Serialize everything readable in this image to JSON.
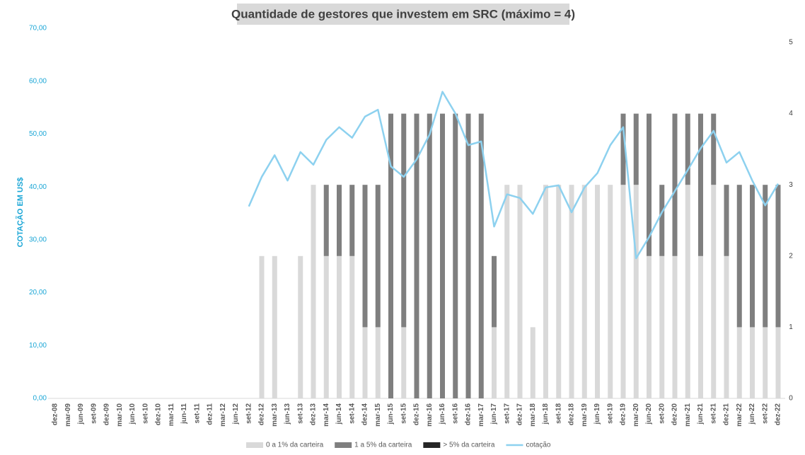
{
  "chart_data": {
    "type": "bar_line",
    "title": "Quantidade de gestores que investem em SRC (máximo = 4)",
    "ylabel": "COTAÇÃO EM US$",
    "categories": [
      "dez-08",
      "mar-09",
      "jun-09",
      "set-09",
      "dez-09",
      "mar-10",
      "jun-10",
      "set-10",
      "dez-10",
      "mar-11",
      "jun-11",
      "set-11",
      "dez-11",
      "mar-12",
      "jun-12",
      "set-12",
      "dez-12",
      "mar-13",
      "jun-13",
      "set-13",
      "dez-13",
      "mar-14",
      "jun-14",
      "set-14",
      "dez-14",
      "mar-15",
      "jun-15",
      "set-15",
      "dez-15",
      "mar-16",
      "jun-16",
      "set-16",
      "dez-16",
      "mar-17",
      "jun-17",
      "set-17",
      "dez-17",
      "mar-18",
      "jun-18",
      "set-18",
      "dez-18",
      "mar-19",
      "jun-19",
      "set-19",
      "dez-19",
      "mar-20",
      "jun-20",
      "set-20",
      "dez-20",
      "mar-21",
      "jun-21",
      "set-21",
      "dez-21",
      "mar-22",
      "jun-22",
      "set-22",
      "dez-22"
    ],
    "series": [
      {
        "name": "0 a 1% da carteira",
        "color": "#d9d9d9",
        "kind": "bar",
        "axis": "y2",
        "values": [
          0,
          0,
          0,
          0,
          0,
          0,
          0,
          0,
          0,
          0,
          0,
          0,
          0,
          0,
          0,
          0,
          2,
          2,
          0,
          2,
          3,
          2,
          2,
          2,
          1,
          1,
          0,
          1,
          0,
          0,
          0,
          0,
          0,
          0,
          1,
          3,
          3,
          1,
          3,
          3,
          3,
          3,
          3,
          3,
          3,
          3,
          2,
          2,
          2,
          3,
          2,
          3,
          2,
          1,
          1,
          1,
          1
        ]
      },
      {
        "name": "1 a 5% da carteira",
        "color": "#7f7f7f",
        "kind": "bar",
        "axis": "y2",
        "values": [
          0,
          0,
          0,
          0,
          0,
          0,
          0,
          0,
          0,
          0,
          0,
          0,
          0,
          0,
          0,
          0,
          0,
          0,
          0,
          0,
          0,
          1,
          1,
          1,
          2,
          2,
          4,
          3,
          4,
          4,
          4,
          4,
          4,
          4,
          1,
          0,
          0,
          0,
          0,
          0,
          0,
          0,
          0,
          0,
          1,
          1,
          2,
          1,
          2,
          1,
          2,
          1,
          1,
          2,
          2,
          2,
          2
        ]
      },
      {
        "name": "> 5% da carteira",
        "color": "#262626",
        "kind": "bar",
        "axis": "y2",
        "values": [
          0,
          0,
          0,
          0,
          0,
          0,
          0,
          0,
          0,
          0,
          0,
          0,
          0,
          0,
          0,
          0,
          0,
          0,
          0,
          0,
          0,
          0,
          0,
          0,
          0,
          0,
          0,
          0,
          0,
          0,
          0,
          0,
          0,
          0,
          0,
          0,
          0,
          0,
          0,
          0,
          0,
          0,
          0,
          0,
          0,
          0,
          0,
          0,
          0,
          0,
          0,
          0,
          0,
          0,
          0,
          0,
          0
        ]
      },
      {
        "name": "cotação",
        "color": "#8dd1ef",
        "kind": "line",
        "values": [
          null,
          null,
          null,
          null,
          null,
          null,
          null,
          null,
          null,
          null,
          null,
          null,
          null,
          null,
          null,
          36.3,
          41.9,
          46,
          41.2,
          46.6,
          44.2,
          48.9,
          51.3,
          49.3,
          53.3,
          54.6,
          43.9,
          41.9,
          45.2,
          49.9,
          58.0,
          53.9,
          47.9,
          48.6,
          32.5,
          38.6,
          37.9,
          34.9,
          39.9,
          40.3,
          35.2,
          39.9,
          42.6,
          47.9,
          51.3,
          26.5,
          30.5,
          35.2,
          39.2,
          43.2,
          47.3,
          50.6,
          44.6,
          46.6,
          41.2,
          36.5,
          40.6
        ]
      }
    ],
    "ylim": [
      0,
      70
    ],
    "yticks": [
      {
        "value": 0,
        "label": "0,00"
      },
      {
        "value": 10,
        "label": "10,00"
      },
      {
        "value": 20,
        "label": "20,00"
      },
      {
        "value": 30,
        "label": "30,00"
      },
      {
        "value": 40,
        "label": "40,00"
      },
      {
        "value": 50,
        "label": "50,00"
      },
      {
        "value": 60,
        "label": "60,00"
      },
      {
        "value": 70,
        "label": "70,00"
      }
    ],
    "y2lim": [
      0,
      5
    ],
    "y2ticks": [
      0,
      1,
      2,
      3,
      4,
      5
    ],
    "legend": "bottom"
  }
}
